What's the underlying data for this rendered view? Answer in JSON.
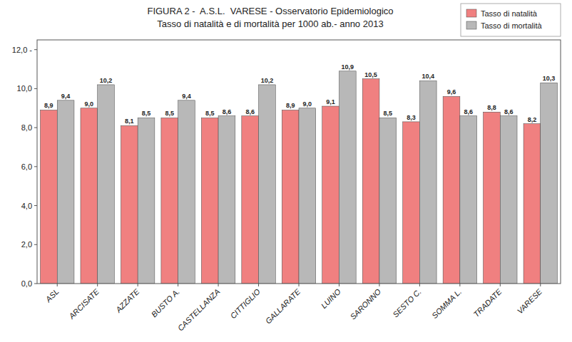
{
  "chart_data": {
    "type": "bar",
    "title": "FIGURA 2 -  A.S.L.  VARESE - Osservatorio Epidemiologico",
    "subtitle": "Tasso di natalità e di mortalità per 1000 ab.- anno 2013",
    "categories": [
      "ASL",
      "ARCISATE",
      "AZZATE",
      "BUSTO A.",
      "CASTELLANZA",
      "CITTIGLIO",
      "GALLARATE",
      "LUINO",
      "SARONNO",
      "SESTO C.",
      "SOMMA L.",
      "TRADATE",
      "VARESE"
    ],
    "series": [
      {
        "name": "Tasso di natalità",
        "color": "#F08080",
        "values": [
          8.9,
          9.0,
          8.1,
          8.5,
          8.5,
          8.6,
          8.9,
          9.1,
          10.5,
          8.3,
          9.6,
          8.8,
          8.2
        ],
        "value_labels": [
          "8,9",
          "9,0",
          "8,1",
          "8,5",
          "8,5",
          "8,6",
          "8,9",
          "9,1",
          "10,5",
          "8,3",
          "9,6",
          "8,8",
          "8,2"
        ]
      },
      {
        "name": "Tasso di mortalità",
        "color": "#B8B8B8",
        "values": [
          9.4,
          10.2,
          8.5,
          9.4,
          8.6,
          10.2,
          9.0,
          10.9,
          8.5,
          10.4,
          8.6,
          8.6,
          10.3
        ],
        "value_labels": [
          "9,4",
          "10,2",
          "8,5",
          "9,4",
          "8,6",
          "10,2",
          "9,0",
          "10,9",
          "8,5",
          "10,4",
          "8,6",
          "8,6",
          "10,3"
        ]
      }
    ],
    "ylim": [
      0,
      12.5
    ],
    "yticks": [
      {
        "value": 0.0,
        "label": "0,0"
      },
      {
        "value": 2.0,
        "label": "2,0"
      },
      {
        "value": 4.0,
        "label": "4,0"
      },
      {
        "value": 6.0,
        "label": "6,0"
      },
      {
        "value": 8.0,
        "label": "8,0"
      },
      {
        "value": 10.0,
        "label": "10,0"
      },
      {
        "value": 12.0,
        "label": "12,0 -"
      }
    ],
    "grid": false,
    "legend": "upper right",
    "data_labels": true
  }
}
